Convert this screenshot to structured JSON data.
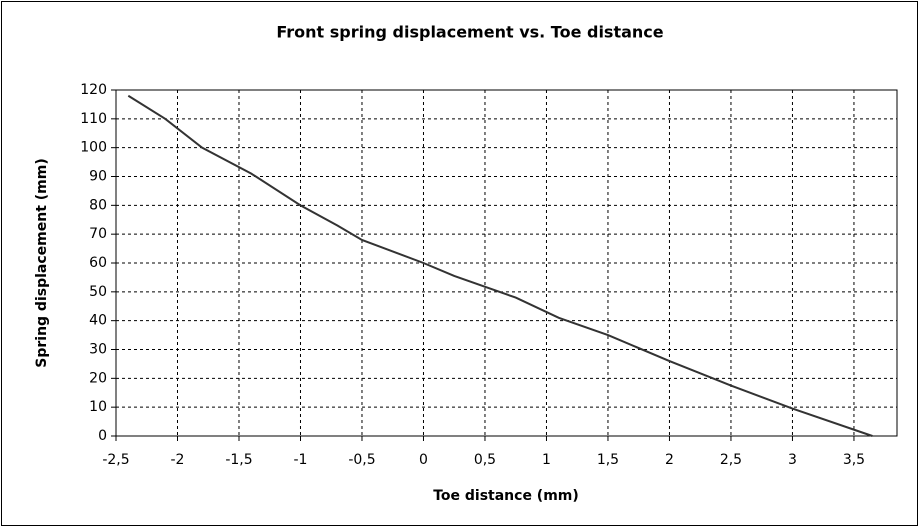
{
  "chart_data": {
    "type": "line",
    "title": "Front spring displacement vs. Toe distance",
    "x_label": "Toe distance (mm)",
    "y_label": "Spring displacement (mm)",
    "x": [
      -2.4,
      -2.1,
      -1.8,
      -1.4,
      -1,
      -0.7,
      -0.5,
      0,
      0.25,
      0.75,
      1.1,
      1.5,
      2,
      2.5,
      3,
      3.65
    ],
    "values": [
      118,
      110,
      100,
      91,
      80,
      73,
      68,
      60,
      55.5,
      48,
      41,
      35,
      26,
      17.5,
      9.5,
      0
    ],
    "color": "#333333",
    "xlim": [
      -2.5,
      3.85
    ],
    "ylim": [
      0,
      120
    ],
    "xticks": [
      {
        "value": -2.5,
        "label": "-2,5"
      },
      -2,
      {
        "value": -1.5,
        "label": "-1,5"
      },
      -1,
      {
        "value": -0.5,
        "label": "-0,5"
      },
      0,
      {
        "value": 0.5,
        "label": "0,5"
      },
      1,
      {
        "value": 1.5,
        "label": "1,5"
      },
      2,
      {
        "value": 2.5,
        "label": "2,5"
      },
      3,
      {
        "value": 3.5,
        "label": "3,5"
      }
    ],
    "yticks": [
      0,
      10,
      20,
      30,
      40,
      50,
      60,
      70,
      80,
      90,
      100,
      110,
      120
    ],
    "grid": true
  }
}
